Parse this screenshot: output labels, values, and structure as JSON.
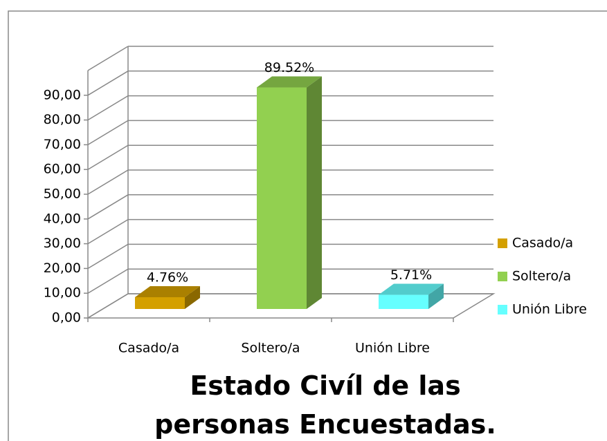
{
  "chart_data": {
    "type": "bar3d",
    "title": "Estado Civíl de las personas Encuestadas.",
    "categories": [
      "Casado/a",
      "Soltero/a",
      "Unión Libre"
    ],
    "values": [
      4.76,
      89.52,
      5.71
    ],
    "value_labels": [
      "4.76%",
      "89.52%",
      "5.71%"
    ],
    "colors": [
      "#d4a000",
      "#92d050",
      "#66ffff"
    ],
    "ylim": [
      0,
      100
    ],
    "yticks": [
      {
        "value": 0,
        "label": "0,00"
      },
      {
        "value": 10,
        "label": "10,00"
      },
      {
        "value": 20,
        "label": "20,00"
      },
      {
        "value": 30,
        "label": "30,00"
      },
      {
        "value": 40,
        "label": "40,00"
      },
      {
        "value": 50,
        "label": "50,00"
      },
      {
        "value": 60,
        "label": "60,00"
      },
      {
        "value": 70,
        "label": "70,00"
      },
      {
        "value": 80,
        "label": "80,00"
      },
      {
        "value": 90,
        "label": "90,00"
      }
    ],
    "grid": true,
    "legend": "right"
  }
}
